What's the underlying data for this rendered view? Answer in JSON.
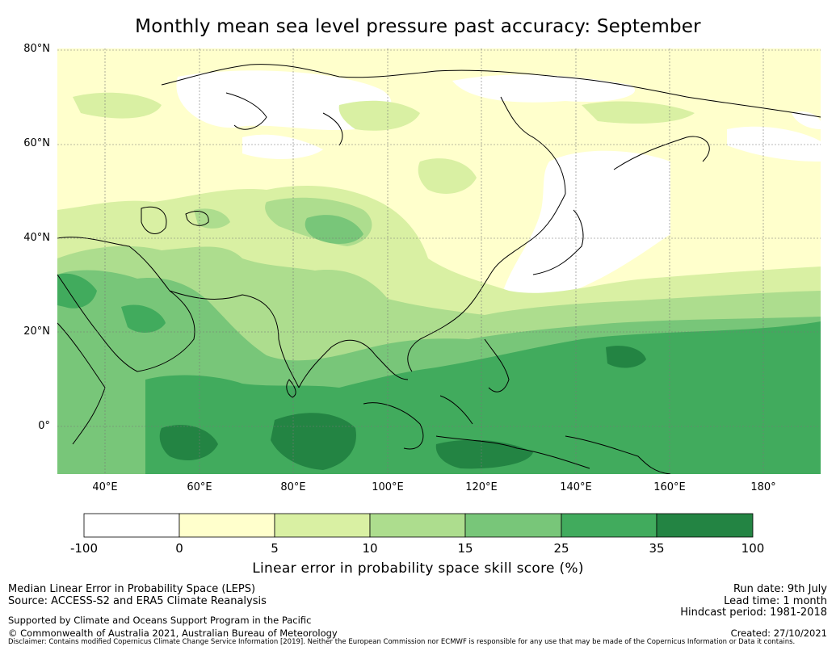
{
  "title": "Monthly mean sea level pressure past accuracy: September",
  "map": {
    "lat_labels": [
      "80°N",
      "60°N",
      "40°N",
      "20°N",
      "0°"
    ],
    "lon_labels": [
      "40°E",
      "60°E",
      "80°E",
      "100°E",
      "120°E",
      "140°E",
      "160°E",
      "180°"
    ],
    "lon_range": [
      30,
      192
    ],
    "lat_range": [
      -10,
      80
    ],
    "gridlines": true
  },
  "colorbar": {
    "ticks": [
      "-100",
      "0",
      "5",
      "10",
      "15",
      "25",
      "35",
      "100"
    ],
    "bins": [
      "-100 to 0",
      "0 to 5",
      "5 to 10",
      "10 to 15",
      "15 to 25",
      "25 to 35",
      "35 to 100"
    ],
    "colors": [
      "#ffffff",
      "#ffffcc",
      "#d9f0a3",
      "#addd8e",
      "#78c679",
      "#41ab5d",
      "#238443"
    ],
    "label": "Linear error in probability space skill score (%)"
  },
  "footer": {
    "metric": "Median Linear Error in Probability Space (LEPS)",
    "source": "Source: ACCESS-S2 and ERA5 Climate Reanalysis",
    "support": "Supported by Climate and Oceans Support Program in the Pacific",
    "copyright": "© Commonwealth of Australia 2021, Australian Bureau of Meteorology",
    "disclaimer": "Disclaimer: Contains modified Copernicus Climate Change Service Information [2019]. Neither the European Commission nor ECMWF is responsible for any use that may be made of the Copernicus Information or Data it contains.",
    "run_date": "Run date: 9th July",
    "lead_time": "Lead time: 1 month",
    "hindcast": "Hindcast period: 1981-2018",
    "created": "Created: 27/10/2021"
  }
}
